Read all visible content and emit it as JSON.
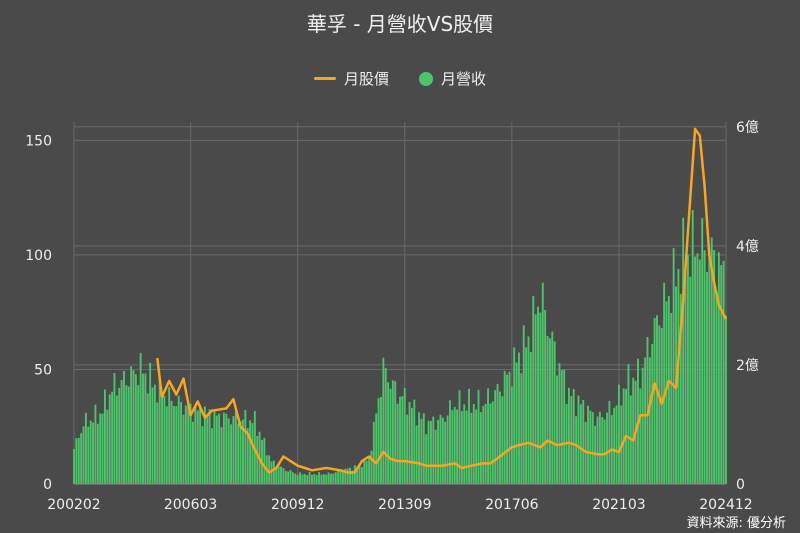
{
  "chart_data": {
    "type": "bar+line",
    "title": "華孚 - 月營收VS股價",
    "legend": [
      {
        "name": "月股價",
        "kind": "line",
        "color": "#f5a623"
      },
      {
        "name": "月營收",
        "kind": "dot",
        "color": "#4ec36b"
      }
    ],
    "legend_position": "top-center",
    "x_tick_labels": [
      "200202",
      "200603",
      "200912",
      "201309",
      "201706",
      "202103",
      "202412"
    ],
    "x_range": [
      "2002-02",
      "2024-12"
    ],
    "y_left": {
      "ticks": [
        0,
        50,
        100,
        150
      ],
      "range": [
        0,
        158
      ],
      "unit": ""
    },
    "y_right": {
      "ticks": [
        "0",
        "2億",
        "4億",
        "6億"
      ],
      "tick_values": [
        0,
        2,
        4,
        6
      ],
      "range": [
        0,
        6.08
      ],
      "unit": "億"
    },
    "grid": true,
    "colors": {
      "background": "#4a4a4a",
      "grid": "#6a6a6a",
      "bar": "#4ec36b",
      "line": "#f5a623",
      "text": "#eeeeee"
    },
    "revenue_anchors_e8": [
      [
        "2002-02",
        0.7
      ],
      [
        "2002-06",
        1.2
      ],
      [
        "2003-01",
        1.4
      ],
      [
        "2003-06",
        1.9
      ],
      [
        "2003-12",
        2.1
      ],
      [
        "2004-06",
        2.3
      ],
      [
        "2005-01",
        1.9
      ],
      [
        "2005-06",
        1.7
      ],
      [
        "2006-03",
        1.5
      ],
      [
        "2007-01",
        1.35
      ],
      [
        "2008-01",
        1.3
      ],
      [
        "2008-06",
        1.25
      ],
      [
        "2009-01",
        0.45
      ],
      [
        "2009-06",
        0.3
      ],
      [
        "2009-12",
        0.2
      ],
      [
        "2011-01",
        0.2
      ],
      [
        "2012-01",
        0.35
      ],
      [
        "2012-06",
        0.5
      ],
      [
        "2012-12",
        2.3
      ],
      [
        "2013-06",
        1.8
      ],
      [
        "2013-09",
        1.7
      ],
      [
        "2014-06",
        1.2
      ],
      [
        "2015-01",
        1.3
      ],
      [
        "2015-06",
        1.6
      ],
      [
        "2016-06",
        1.6
      ],
      [
        "2017-01",
        1.9
      ],
      [
        "2017-06",
        2.3
      ],
      [
        "2018-01",
        2.9
      ],
      [
        "2018-06",
        3.8
      ],
      [
        "2018-09",
        3.2
      ],
      [
        "2019-01",
        2.5
      ],
      [
        "2019-06",
        1.8
      ],
      [
        "2020-01",
        1.5
      ],
      [
        "2020-06",
        1.3
      ],
      [
        "2020-12",
        1.5
      ],
      [
        "2021-03",
        1.7
      ],
      [
        "2021-06",
        2.0
      ],
      [
        "2021-12",
        2.2
      ],
      [
        "2022-06",
        3.1
      ],
      [
        "2022-12",
        3.8
      ],
      [
        "2023-06",
        4.5
      ],
      [
        "2023-12",
        4.8
      ],
      [
        "2024-06",
        4.6
      ],
      [
        "2024-12",
        4.1
      ]
    ],
    "price_series": [
      [
        "2005-01",
        55
      ],
      [
        "2005-03",
        38
      ],
      [
        "2005-06",
        45
      ],
      [
        "2005-09",
        39
      ],
      [
        "2005-12",
        46
      ],
      [
        "2006-03",
        30
      ],
      [
        "2006-06",
        36
      ],
      [
        "2006-09",
        29
      ],
      [
        "2006-12",
        32
      ],
      [
        "2007-06",
        33
      ],
      [
        "2007-09",
        37
      ],
      [
        "2007-12",
        25
      ],
      [
        "2008-03",
        22
      ],
      [
        "2008-06",
        15
      ],
      [
        "2008-09",
        9
      ],
      [
        "2008-12",
        5
      ],
      [
        "2009-03",
        7
      ],
      [
        "2009-06",
        12
      ],
      [
        "2009-09",
        10
      ],
      [
        "2009-12",
        8
      ],
      [
        "2010-03",
        7
      ],
      [
        "2010-06",
        6
      ],
      [
        "2010-12",
        7
      ],
      [
        "2011-06",
        6
      ],
      [
        "2011-09",
        5
      ],
      [
        "2011-12",
        5
      ],
      [
        "2012-03",
        10
      ],
      [
        "2012-06",
        12
      ],
      [
        "2012-09",
        9
      ],
      [
        "2012-12",
        14
      ],
      [
        "2013-03",
        11
      ],
      [
        "2013-06",
        10
      ],
      [
        "2013-09",
        10
      ],
      [
        "2014-03",
        9
      ],
      [
        "2014-06",
        8
      ],
      [
        "2015-01",
        8
      ],
      [
        "2015-06",
        9
      ],
      [
        "2015-09",
        7
      ],
      [
        "2016-01",
        8
      ],
      [
        "2016-06",
        9
      ],
      [
        "2016-09",
        9
      ],
      [
        "2017-01",
        12
      ],
      [
        "2017-06",
        16
      ],
      [
        "2017-09",
        17
      ],
      [
        "2018-01",
        18
      ],
      [
        "2018-06",
        16
      ],
      [
        "2018-09",
        19
      ],
      [
        "2019-01",
        17
      ],
      [
        "2019-06",
        18
      ],
      [
        "2019-09",
        17
      ],
      [
        "2020-01",
        14
      ],
      [
        "2020-06",
        13
      ],
      [
        "2020-09",
        13
      ],
      [
        "2020-12",
        15
      ],
      [
        "2021-03",
        14
      ],
      [
        "2021-06",
        21
      ],
      [
        "2021-09",
        19
      ],
      [
        "2021-12",
        30
      ],
      [
        "2022-03",
        30
      ],
      [
        "2022-06",
        44
      ],
      [
        "2022-09",
        35
      ],
      [
        "2022-12",
        45
      ],
      [
        "2023-03",
        42
      ],
      [
        "2023-06",
        80
      ],
      [
        "2023-09",
        125
      ],
      [
        "2023-11",
        155
      ],
      [
        "2024-01",
        152
      ],
      [
        "2024-03",
        130
      ],
      [
        "2024-05",
        100
      ],
      [
        "2024-07",
        88
      ],
      [
        "2024-09",
        78
      ],
      [
        "2024-12",
        72
      ]
    ]
  },
  "source_text": "資料來源: 優分析"
}
